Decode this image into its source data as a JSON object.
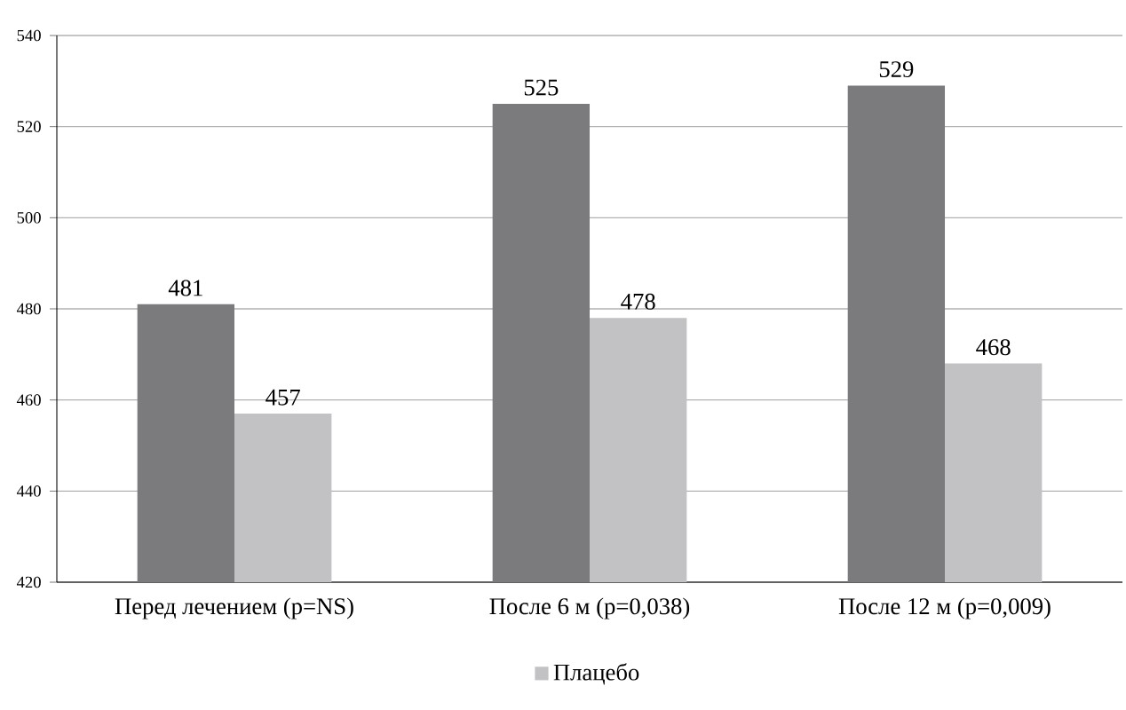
{
  "chart_data": {
    "type": "bar",
    "categories": [
      "Перед лечением (p=NS)",
      "После 6 м (p=0,038)",
      "После 12 м (p=0,009)"
    ],
    "series": [
      {
        "color": "#7b7b7d",
        "values": [
          481,
          525,
          529
        ]
      },
      {
        "name": "Плацебо",
        "color": "#c2c2c4",
        "values": [
          457,
          478,
          468
        ]
      }
    ],
    "ylim": [
      420,
      540
    ],
    "yticks": [
      420,
      440,
      460,
      480,
      500,
      520,
      540
    ],
    "grid": "y",
    "legend": "bottom",
    "data_labels": true
  }
}
